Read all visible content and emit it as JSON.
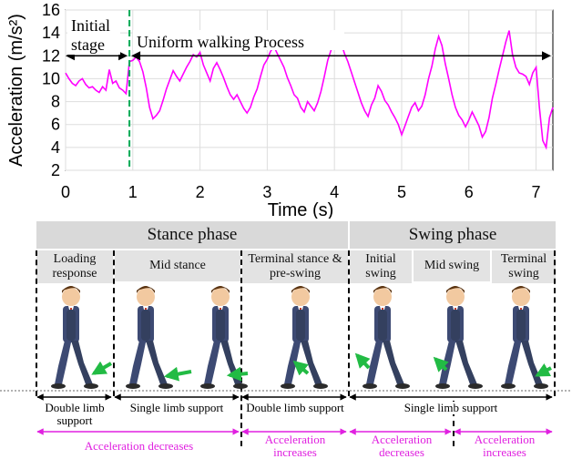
{
  "chart_data": {
    "type": "line",
    "xlabel": "Time (s)",
    "ylabel": "Acceleration (m/s²)",
    "xlim": [
      0,
      7.25
    ],
    "ylim": [
      2,
      16
    ],
    "xticks": [
      "0",
      "1",
      "2",
      "3",
      "4",
      "5",
      "6",
      "7"
    ],
    "yticks": [
      "2",
      "4",
      "6",
      "8",
      "10",
      "12",
      "14",
      "16"
    ],
    "grid": true,
    "series": [
      {
        "color": "#ff00ff",
        "x": [
          0.0,
          0.05,
          0.1,
          0.15,
          0.2,
          0.25,
          0.3,
          0.35,
          0.4,
          0.45,
          0.5,
          0.55,
          0.6,
          0.65,
          0.7,
          0.75,
          0.8,
          0.85,
          0.9,
          0.95,
          1.0,
          1.05,
          1.1,
          1.15,
          1.2,
          1.25,
          1.3,
          1.35,
          1.4,
          1.45,
          1.5,
          1.55,
          1.6,
          1.65,
          1.7,
          1.75,
          1.8,
          1.85,
          1.9,
          1.95,
          2.0,
          2.05,
          2.1,
          2.15,
          2.2,
          2.25,
          2.3,
          2.35,
          2.4,
          2.45,
          2.5,
          2.55,
          2.6,
          2.65,
          2.7,
          2.75,
          2.8,
          2.85,
          2.9,
          2.95,
          3.0,
          3.05,
          3.1,
          3.15,
          3.2,
          3.25,
          3.3,
          3.35,
          3.4,
          3.45,
          3.5,
          3.55,
          3.6,
          3.65,
          3.7,
          3.75,
          3.8,
          3.85,
          3.9,
          3.95,
          4.0,
          4.05,
          4.1,
          4.15,
          4.2,
          4.25,
          4.3,
          4.35,
          4.4,
          4.45,
          4.5,
          4.55,
          4.6,
          4.65,
          4.7,
          4.75,
          4.8,
          4.85,
          4.9,
          4.95,
          5.0,
          5.05,
          5.1,
          5.15,
          5.2,
          5.25,
          5.3,
          5.35,
          5.4,
          5.45,
          5.5,
          5.55,
          5.6,
          5.65,
          5.7,
          5.75,
          5.8,
          5.85,
          5.9,
          5.95,
          6.0,
          6.05,
          6.1,
          6.15,
          6.2,
          6.25,
          6.3,
          6.35,
          6.4,
          6.45,
          6.5,
          6.55,
          6.6,
          6.65,
          6.7,
          6.75,
          6.8,
          6.85,
          6.9,
          6.95,
          7.0,
          7.05,
          7.1,
          7.15,
          7.2,
          7.25
        ],
        "y": [
          10.5,
          10.0,
          9.6,
          9.4,
          9.8,
          10.0,
          9.5,
          9.2,
          9.3,
          9.0,
          8.8,
          9.3,
          9.0,
          10.8,
          9.6,
          9.8,
          9.2,
          9.0,
          8.7,
          11.5,
          11.6,
          11.9,
          11.5,
          10.6,
          9.2,
          7.5,
          6.5,
          6.8,
          7.2,
          8.1,
          9.1,
          9.9,
          10.7,
          10.2,
          9.8,
          10.4,
          11.0,
          11.5,
          12.1,
          11.9,
          12.3,
          11.2,
          10.5,
          9.8,
          10.9,
          11.4,
          10.8,
          10.1,
          9.3,
          8.6,
          8.2,
          8.6,
          8.0,
          7.4,
          7.0,
          7.5,
          8.4,
          9.1,
          10.2,
          11.2,
          11.7,
          12.4,
          12.8,
          12.2,
          11.6,
          11.0,
          10.1,
          9.4,
          8.6,
          8.3,
          7.5,
          7.1,
          8.0,
          7.6,
          7.2,
          7.9,
          8.9,
          10.2,
          11.6,
          12.5,
          13.4,
          14.0,
          13.1,
          12.2,
          11.5,
          10.6,
          9.7,
          8.8,
          7.9,
          7.2,
          6.7,
          7.7,
          8.3,
          9.4,
          8.9,
          8.1,
          7.7,
          7.1,
          6.6,
          6.0,
          5.1,
          5.9,
          6.7,
          7.5,
          7.9,
          7.2,
          7.6,
          8.6,
          10.0,
          11.1,
          12.6,
          13.7,
          12.9,
          11.3,
          10.0,
          8.6,
          7.5,
          6.8,
          6.4,
          5.8,
          6.4,
          7.1,
          6.5,
          5.9,
          4.9,
          5.4,
          6.6,
          8.3,
          9.5,
          10.8,
          12.0,
          13.2,
          14.2,
          12.1,
          11.0,
          10.5,
          10.4,
          10.2,
          9.5,
          10.5,
          11.0,
          7.5,
          4.6,
          4.0,
          6.6,
          7.5
        ]
      }
    ],
    "annotations": {
      "initial_label": [
        "Initial",
        "stage"
      ],
      "uniform_label": "Uniform walking Process",
      "marker_x": 0.95
    }
  },
  "diagram": {
    "phases": [
      {
        "label": "Stance phase"
      },
      {
        "label": "Swing phase"
      }
    ],
    "subphases": [
      {
        "label": "Loading response"
      },
      {
        "label": "Mid stance"
      },
      {
        "label": "Terminal stance & pre-swing"
      },
      {
        "label": "Initial swing"
      },
      {
        "label": "Mid swing"
      },
      {
        "label": "Terminal swing"
      }
    ],
    "support": [
      {
        "label": "Double limb support"
      },
      {
        "label": "Single limb support"
      },
      {
        "label": "Double limb support"
      },
      {
        "label": "Single limb support"
      }
    ],
    "acceleration": [
      {
        "label": "Acceleration decreases"
      },
      {
        "label": "Acceleration increases"
      },
      {
        "label": "Acceleration decreases"
      },
      {
        "label": "Acceleration increases"
      }
    ],
    "colors": {
      "signal": "#ff00ff",
      "marker": "#00aa55",
      "arrow": "#22bb44",
      "suit": "#3d4a73",
      "header_bg": "#d9d9d9"
    }
  }
}
